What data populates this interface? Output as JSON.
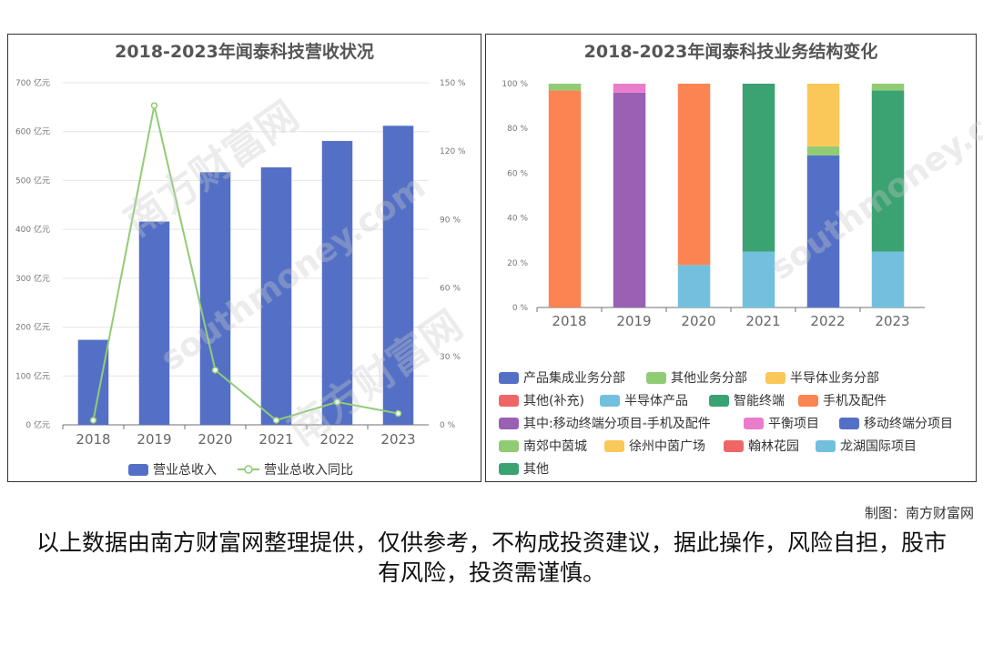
{
  "chart_data": [
    {
      "type": "bar+line",
      "title": "2018-2023年闻泰科技营收状况",
      "categories": [
        "2018",
        "2019",
        "2020",
        "2021",
        "2022",
        "2023"
      ],
      "y_left": {
        "ticks": [
          "0 亿元",
          "100 亿元",
          "200 亿元",
          "300 亿元",
          "400 亿元",
          "500 亿元",
          "600 亿元",
          "700 亿元"
        ],
        "ylim": [
          0,
          700
        ]
      },
      "y_right": {
        "ticks": [
          "0 %",
          "30 %",
          "60 %",
          "90 %",
          "120 %",
          "150 %"
        ],
        "ylim": [
          0,
          150
        ]
      },
      "series": [
        {
          "name": "营业总收入",
          "type": "bar",
          "axis": "left",
          "color": "#5470c6",
          "values": [
            174,
            416,
            517,
            527,
            581,
            612
          ]
        },
        {
          "name": "营业总收入同比",
          "type": "line",
          "axis": "right",
          "color": "#91cc75",
          "values": [
            2,
            140,
            24,
            2,
            10,
            5
          ]
        }
      ],
      "legend": "bottom"
    },
    {
      "type": "stacked-bar",
      "title": "2018-2023年闻泰科技业务结构变化",
      "categories": [
        "2018",
        "2019",
        "2020",
        "2021",
        "2022",
        "2023"
      ],
      "y": {
        "ticks": [
          "0 %",
          "20 %",
          "40 %",
          "60 %",
          "80 %",
          "100 %"
        ],
        "ylim": [
          0,
          100
        ]
      },
      "series": [
        {
          "name": "产品集成业务分部",
          "color": "#5470c6",
          "values": [
            0,
            0,
            0,
            0,
            0,
            0
          ]
        },
        {
          "name": "其他业务分部",
          "color": "#91cc75",
          "values": [
            0,
            0,
            0,
            0,
            0,
            0
          ]
        },
        {
          "name": "半导体业务分部",
          "color": "#fac858",
          "values": [
            0,
            0,
            0,
            0,
            0,
            0
          ]
        },
        {
          "name": "其他(补充)",
          "color": "#ee6666",
          "values": [
            0,
            0,
            0,
            0,
            0,
            0
          ]
        },
        {
          "name": "半导体产品",
          "color": "#73c0de",
          "values": [
            0,
            0,
            19,
            25,
            0,
            25
          ]
        },
        {
          "name": "智能终端",
          "color": "#3ba272",
          "values": [
            0,
            0,
            0,
            75,
            0,
            72
          ]
        },
        {
          "name": "手机及配件",
          "color": "#fc8452",
          "values": [
            97,
            0,
            81,
            0,
            0,
            0
          ]
        },
        {
          "name": "其中:移动终端分项目-手机及配件",
          "color": "#9a60b4",
          "values": [
            0,
            96,
            0,
            0,
            0,
            0
          ]
        },
        {
          "name": "平衡项目",
          "color": "#ea7ccc",
          "values": [
            0,
            4,
            0,
            0,
            0,
            0
          ]
        },
        {
          "name": "移动终端分项目",
          "color": "#5470c6",
          "values": [
            0,
            0,
            0,
            0,
            68,
            0
          ]
        },
        {
          "name": "南郊中茵城",
          "color": "#91cc75",
          "values": [
            3,
            0,
            0,
            0,
            4,
            3
          ]
        },
        {
          "name": "徐州中茵广场",
          "color": "#fac858",
          "values": [
            0,
            0,
            0,
            0,
            28,
            0
          ]
        },
        {
          "name": "翰林花园",
          "color": "#ee6666",
          "values": [
            0,
            0,
            0,
            0,
            0,
            0
          ]
        },
        {
          "name": "龙湖国际项目",
          "color": "#73c0de",
          "values": [
            0,
            0,
            0,
            0,
            0,
            0
          ]
        },
        {
          "name": "其他",
          "color": "#3ba272",
          "values": [
            0,
            0,
            0,
            0,
            0,
            0
          ]
        }
      ],
      "legend": "bottom"
    }
  ],
  "watermark": {
    "text": "南方财富网",
    "domain": "southmoney.com"
  },
  "footer": {
    "credit": "制图：南方财富网",
    "disclaimer": "以上数据由南方财富网整理提供，仅供参考，不构成投资建议，据此操作，风险自担，股市有风险，投资需谨慎。"
  }
}
